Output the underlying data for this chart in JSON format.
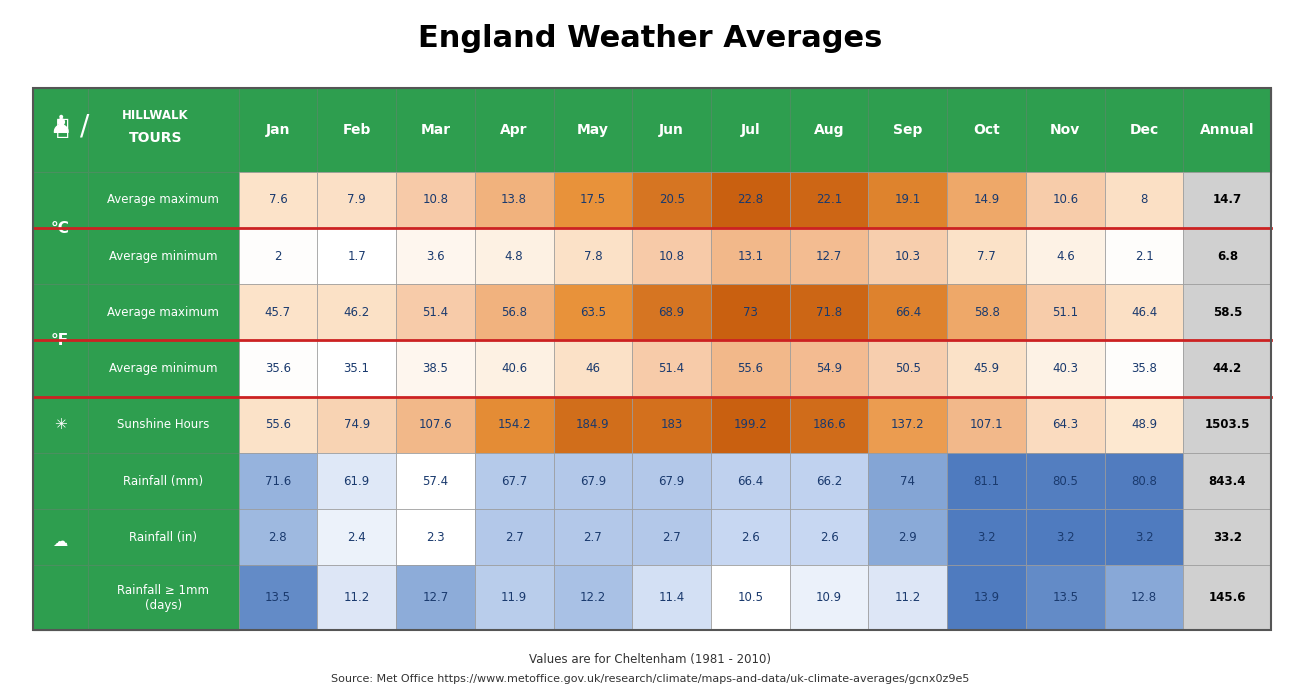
{
  "title": "England Weather Averages",
  "subtitle1": "Values are for Cheltenham (1981 - 2010)",
  "subtitle2": "Source: Met Office https://www.metoffice.gov.uk/research/climate/maps-and-data/uk-climate-averages/gcnx0z9e5",
  "months": [
    "Jan",
    "Feb",
    "Mar",
    "Apr",
    "May",
    "Jun",
    "Jul",
    "Aug",
    "Sep",
    "Oct",
    "Nov",
    "Dec",
    "Annual"
  ],
  "rows": [
    {
      "label": "Average maximum",
      "group": "C",
      "values": [
        7.6,
        7.9,
        10.8,
        13.8,
        17.5,
        20.5,
        22.8,
        22.1,
        19.1,
        14.9,
        10.6,
        8.0,
        14.7
      ],
      "type": "temp"
    },
    {
      "label": "Average minimum",
      "group": "C",
      "values": [
        2.0,
        1.7,
        3.6,
        4.8,
        7.8,
        10.8,
        13.1,
        12.7,
        10.3,
        7.7,
        4.6,
        2.1,
        6.8
      ],
      "type": "temp"
    },
    {
      "label": "Average maximum",
      "group": "F",
      "values": [
        45.7,
        46.2,
        51.4,
        56.8,
        63.5,
        68.9,
        73.0,
        71.8,
        66.4,
        58.8,
        51.1,
        46.4,
        58.5
      ],
      "type": "temp"
    },
    {
      "label": "Average minimum",
      "group": "F",
      "values": [
        35.6,
        35.1,
        38.5,
        40.6,
        46.0,
        51.4,
        55.6,
        54.9,
        50.5,
        45.9,
        40.3,
        35.8,
        44.2
      ],
      "type": "temp"
    },
    {
      "label": "Sunshine Hours",
      "group": "sun",
      "values": [
        55.6,
        74.9,
        107.6,
        154.2,
        184.9,
        183.0,
        199.2,
        186.6,
        137.2,
        107.1,
        64.3,
        48.9,
        1503.5
      ],
      "type": "sun"
    },
    {
      "label": "Rainfall (mm)",
      "group": "rain",
      "values": [
        71.6,
        61.9,
        57.4,
        67.7,
        67.9,
        67.9,
        66.4,
        66.2,
        74.0,
        81.1,
        80.5,
        80.8,
        843.4
      ],
      "type": "rain"
    },
    {
      "label": "Rainfall (in)",
      "group": "rain",
      "values": [
        2.8,
        2.4,
        2.3,
        2.7,
        2.7,
        2.7,
        2.6,
        2.6,
        2.9,
        3.2,
        3.2,
        3.2,
        33.2
      ],
      "type": "rain"
    },
    {
      "label": "Rainfall ≥ 1mm\n(days)",
      "group": "rain",
      "values": [
        13.5,
        11.2,
        12.7,
        11.9,
        12.2,
        11.4,
        10.5,
        10.9,
        11.2,
        13.9,
        13.5,
        12.8,
        145.6
      ],
      "type": "rain_days"
    }
  ],
  "green": "#2e9e4f",
  "cell_text_color": "#1a3a6e",
  "annual_bg": "#d0d0d0",
  "annual_text": "#000000",
  "group_sep_color": "#cc2222",
  "temp_colors": [
    "#ffffff",
    "#fde8d0",
    "#f5c99a",
    "#e8a060",
    "#cc7020"
  ],
  "temp_c_min": 1.7,
  "temp_c_max": 22.8,
  "temp_f_min": 35.1,
  "temp_f_max": 73.0,
  "sun_min": 48.9,
  "sun_max": 199.2,
  "sun_colors": [
    "#fde8d0",
    "#f5c99a",
    "#e8a060",
    "#cc7020"
  ],
  "rain_colors": [
    "#ffffff",
    "#c8d8f0",
    "#8aadd8",
    "#5580c0"
  ],
  "rain_mm_min": 57.4,
  "rain_mm_max": 81.1,
  "rain_in_min": 2.3,
  "rain_in_max": 3.2,
  "rain_days_min": 10.5,
  "rain_days_max": 13.9
}
